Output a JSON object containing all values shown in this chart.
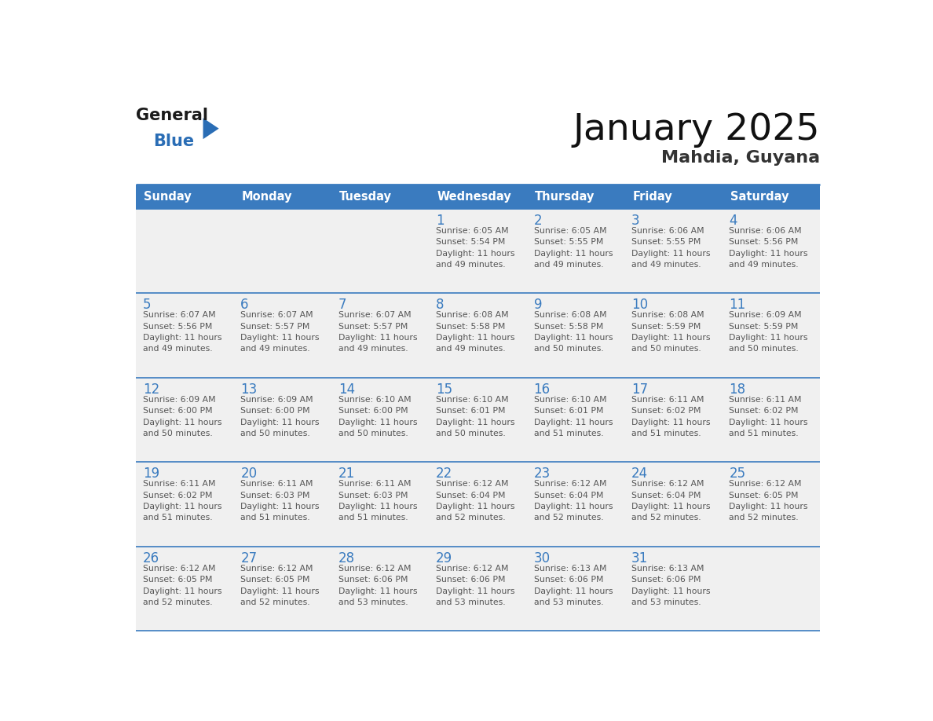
{
  "title": "January 2025",
  "subtitle": "Mahdia, Guyana",
  "header_color": "#3a7bbf",
  "header_text_color": "#ffffff",
  "cell_bg_light": "#f0f0f0",
  "cell_bg_white": "#ffffff",
  "day_number_color": "#3a7bbf",
  "text_color": "#555555",
  "line_color": "#3a7bbf",
  "days_of_week": [
    "Sunday",
    "Monday",
    "Tuesday",
    "Wednesday",
    "Thursday",
    "Friday",
    "Saturday"
  ],
  "weeks": [
    [
      {
        "day": 0,
        "info": ""
      },
      {
        "day": 0,
        "info": ""
      },
      {
        "day": 0,
        "info": ""
      },
      {
        "day": 1,
        "info": "Sunrise: 6:05 AM\nSunset: 5:54 PM\nDaylight: 11 hours\nand 49 minutes."
      },
      {
        "day": 2,
        "info": "Sunrise: 6:05 AM\nSunset: 5:55 PM\nDaylight: 11 hours\nand 49 minutes."
      },
      {
        "day": 3,
        "info": "Sunrise: 6:06 AM\nSunset: 5:55 PM\nDaylight: 11 hours\nand 49 minutes."
      },
      {
        "day": 4,
        "info": "Sunrise: 6:06 AM\nSunset: 5:56 PM\nDaylight: 11 hours\nand 49 minutes."
      }
    ],
    [
      {
        "day": 5,
        "info": "Sunrise: 6:07 AM\nSunset: 5:56 PM\nDaylight: 11 hours\nand 49 minutes."
      },
      {
        "day": 6,
        "info": "Sunrise: 6:07 AM\nSunset: 5:57 PM\nDaylight: 11 hours\nand 49 minutes."
      },
      {
        "day": 7,
        "info": "Sunrise: 6:07 AM\nSunset: 5:57 PM\nDaylight: 11 hours\nand 49 minutes."
      },
      {
        "day": 8,
        "info": "Sunrise: 6:08 AM\nSunset: 5:58 PM\nDaylight: 11 hours\nand 49 minutes."
      },
      {
        "day": 9,
        "info": "Sunrise: 6:08 AM\nSunset: 5:58 PM\nDaylight: 11 hours\nand 50 minutes."
      },
      {
        "day": 10,
        "info": "Sunrise: 6:08 AM\nSunset: 5:59 PM\nDaylight: 11 hours\nand 50 minutes."
      },
      {
        "day": 11,
        "info": "Sunrise: 6:09 AM\nSunset: 5:59 PM\nDaylight: 11 hours\nand 50 minutes."
      }
    ],
    [
      {
        "day": 12,
        "info": "Sunrise: 6:09 AM\nSunset: 6:00 PM\nDaylight: 11 hours\nand 50 minutes."
      },
      {
        "day": 13,
        "info": "Sunrise: 6:09 AM\nSunset: 6:00 PM\nDaylight: 11 hours\nand 50 minutes."
      },
      {
        "day": 14,
        "info": "Sunrise: 6:10 AM\nSunset: 6:00 PM\nDaylight: 11 hours\nand 50 minutes."
      },
      {
        "day": 15,
        "info": "Sunrise: 6:10 AM\nSunset: 6:01 PM\nDaylight: 11 hours\nand 50 minutes."
      },
      {
        "day": 16,
        "info": "Sunrise: 6:10 AM\nSunset: 6:01 PM\nDaylight: 11 hours\nand 51 minutes."
      },
      {
        "day": 17,
        "info": "Sunrise: 6:11 AM\nSunset: 6:02 PM\nDaylight: 11 hours\nand 51 minutes."
      },
      {
        "day": 18,
        "info": "Sunrise: 6:11 AM\nSunset: 6:02 PM\nDaylight: 11 hours\nand 51 minutes."
      }
    ],
    [
      {
        "day": 19,
        "info": "Sunrise: 6:11 AM\nSunset: 6:02 PM\nDaylight: 11 hours\nand 51 minutes."
      },
      {
        "day": 20,
        "info": "Sunrise: 6:11 AM\nSunset: 6:03 PM\nDaylight: 11 hours\nand 51 minutes."
      },
      {
        "day": 21,
        "info": "Sunrise: 6:11 AM\nSunset: 6:03 PM\nDaylight: 11 hours\nand 51 minutes."
      },
      {
        "day": 22,
        "info": "Sunrise: 6:12 AM\nSunset: 6:04 PM\nDaylight: 11 hours\nand 52 minutes."
      },
      {
        "day": 23,
        "info": "Sunrise: 6:12 AM\nSunset: 6:04 PM\nDaylight: 11 hours\nand 52 minutes."
      },
      {
        "day": 24,
        "info": "Sunrise: 6:12 AM\nSunset: 6:04 PM\nDaylight: 11 hours\nand 52 minutes."
      },
      {
        "day": 25,
        "info": "Sunrise: 6:12 AM\nSunset: 6:05 PM\nDaylight: 11 hours\nand 52 minutes."
      }
    ],
    [
      {
        "day": 26,
        "info": "Sunrise: 6:12 AM\nSunset: 6:05 PM\nDaylight: 11 hours\nand 52 minutes."
      },
      {
        "day": 27,
        "info": "Sunrise: 6:12 AM\nSunset: 6:05 PM\nDaylight: 11 hours\nand 52 minutes."
      },
      {
        "day": 28,
        "info": "Sunrise: 6:12 AM\nSunset: 6:06 PM\nDaylight: 11 hours\nand 53 minutes."
      },
      {
        "day": 29,
        "info": "Sunrise: 6:12 AM\nSunset: 6:06 PM\nDaylight: 11 hours\nand 53 minutes."
      },
      {
        "day": 30,
        "info": "Sunrise: 6:13 AM\nSunset: 6:06 PM\nDaylight: 11 hours\nand 53 minutes."
      },
      {
        "day": 31,
        "info": "Sunrise: 6:13 AM\nSunset: 6:06 PM\nDaylight: 11 hours\nand 53 minutes."
      },
      {
        "day": 0,
        "info": ""
      }
    ]
  ],
  "logo_general_color": "#1a1a1a",
  "logo_blue_color": "#2a6db5",
  "logo_triangle_color": "#2a6db5"
}
